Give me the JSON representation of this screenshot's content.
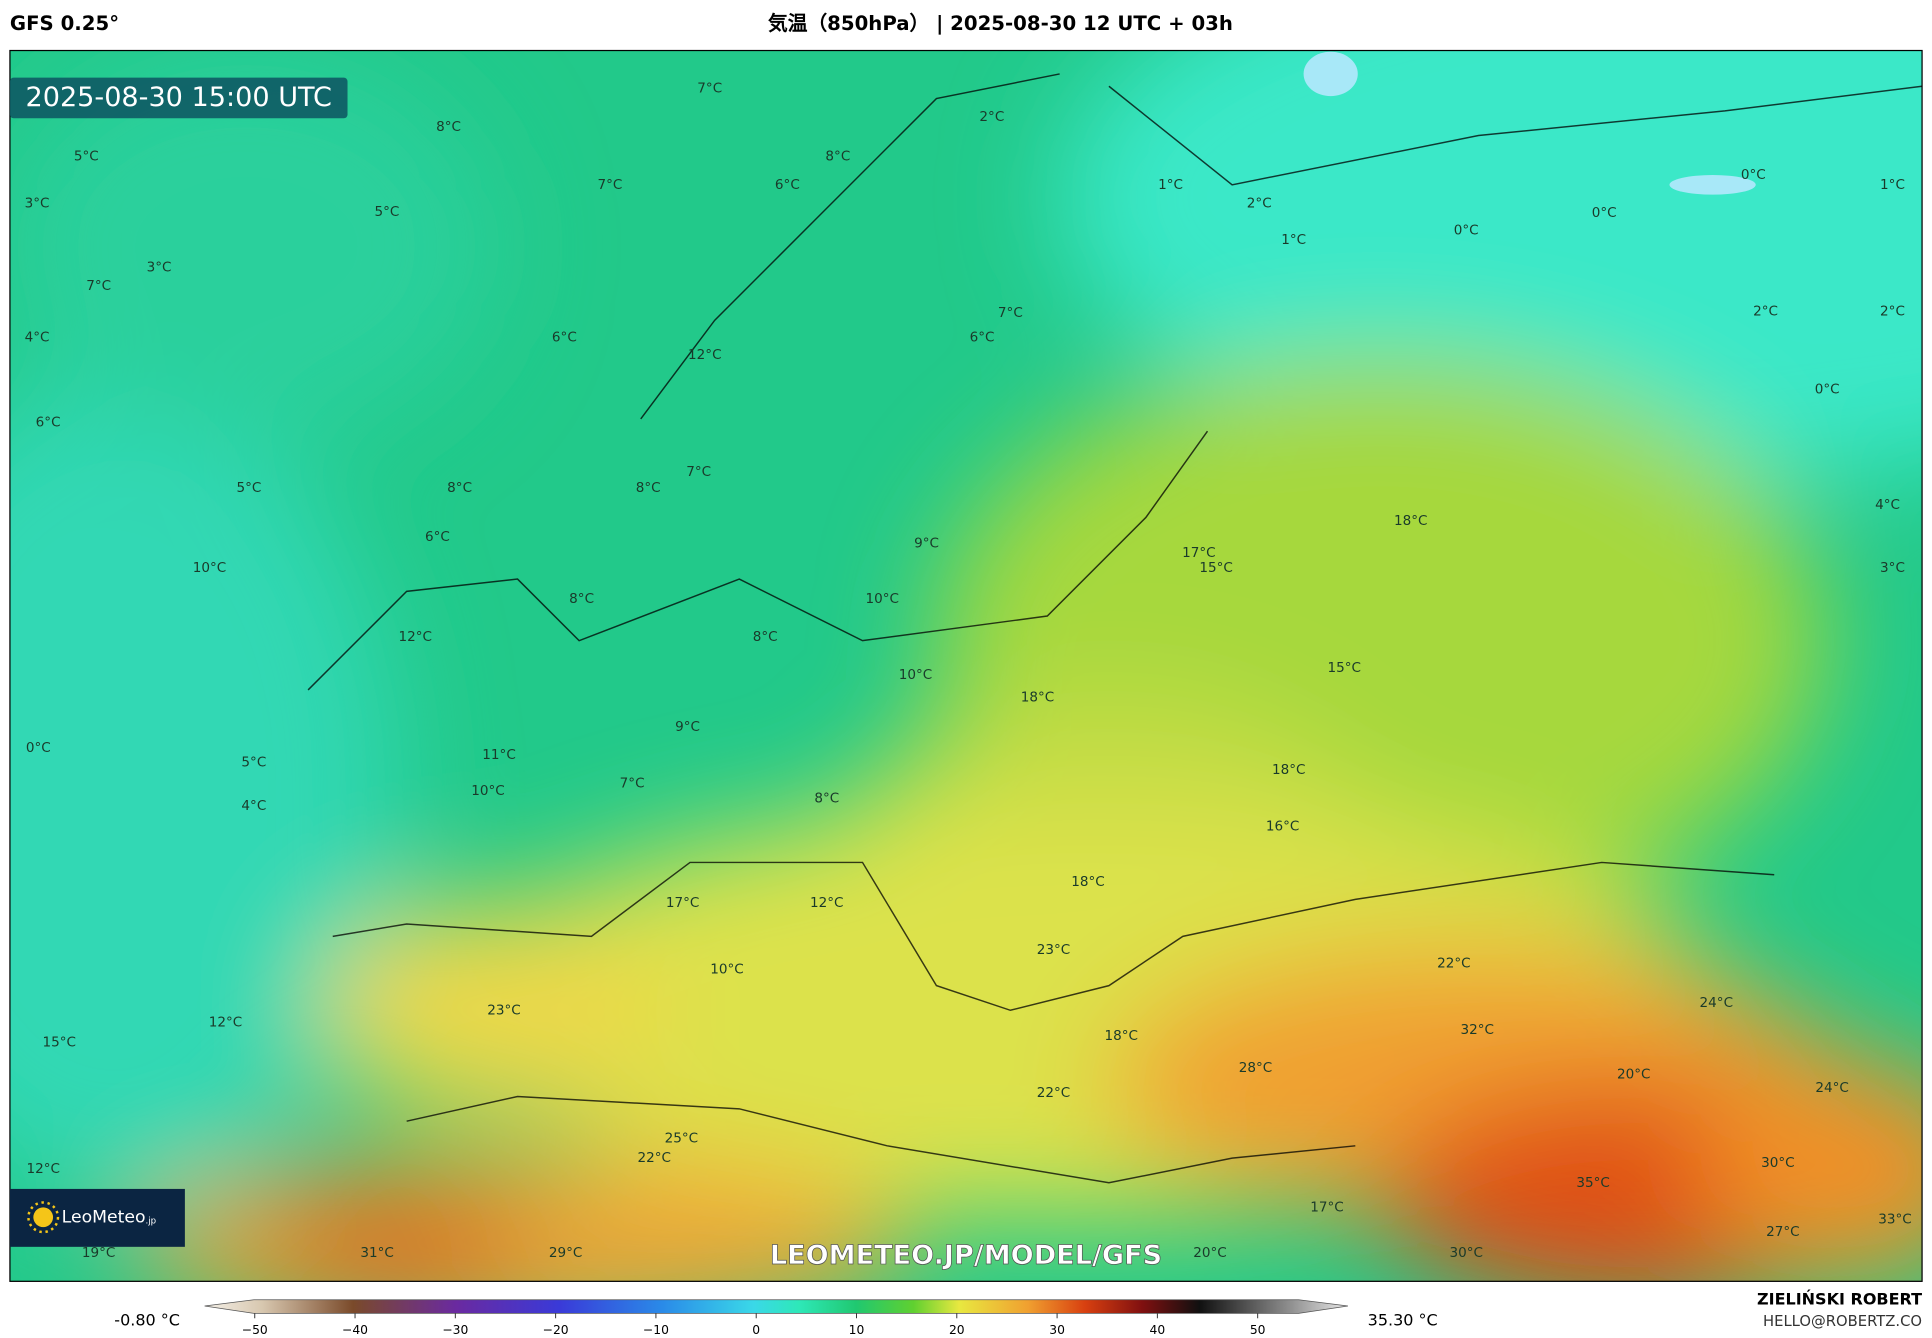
{
  "header": {
    "model": "GFS 0.25°",
    "title": "気温（850hPa） | 2025-08-30 12 UTC + 03h"
  },
  "map": {
    "timestamp": "2025-08-30 15:00 UTC",
    "temperature_labels": [
      "7°C",
      "8°C",
      "5°C",
      "2°C",
      "8°C",
      "7°C",
      "6°C",
      "1°C",
      "2°C",
      "0°C",
      "1°C",
      "3°C",
      "5°C",
      "0°C",
      "0°C",
      "1°C",
      "3°C",
      "7°C",
      "7°C",
      "2°C",
      "2°C",
      "4°C",
      "6°C",
      "6°C",
      "12°C",
      "0°C",
      "6°C",
      "7°C",
      "5°C",
      "8°C",
      "8°C",
      "4°C",
      "18°C",
      "6°C",
      "9°C",
      "17°C",
      "15°C",
      "10°C",
      "3°C",
      "8°C",
      "10°C",
      "12°C",
      "8°C",
      "15°C",
      "10°C",
      "18°C",
      "9°C",
      "0°C",
      "11°C",
      "5°C",
      "18°C",
      "7°C",
      "10°C",
      "8°C",
      "4°C",
      "16°C",
      "18°C",
      "17°C",
      "12°C",
      "23°C",
      "22°C",
      "10°C",
      "24°C",
      "23°C",
      "12°C",
      "32°C",
      "18°C",
      "15°C",
      "28°C",
      "20°C",
      "24°C",
      "22°C",
      "25°C",
      "22°C",
      "30°C",
      "12°C",
      "35°C",
      "17°C",
      "27°C",
      "33°C",
      "19°C",
      "31°C",
      "29°C",
      "20°C",
      "30°C"
    ],
    "watermark": "LEOMETEO.JP/MODEL/GFS",
    "logo": {
      "name": "LeoMeteo",
      "suffix": ".jp"
    }
  },
  "colorbar": {
    "min_label": "-0.80 °C",
    "max_label": "35.30 °C",
    "lim": [
      -55,
      59
    ],
    "ticks": [
      {
        "value": -50,
        "label": "−50"
      },
      {
        "value": -40,
        "label": "−40"
      },
      {
        "value": -30,
        "label": "−30"
      },
      {
        "value": -20,
        "label": "−20"
      },
      {
        "value": -10,
        "label": "−10"
      },
      0,
      10,
      20,
      30,
      40,
      50
    ]
  },
  "footer": {
    "author": "ZIELIŃSKI ROBERT",
    "email": "HELLO@ROBERTZ.CO"
  }
}
